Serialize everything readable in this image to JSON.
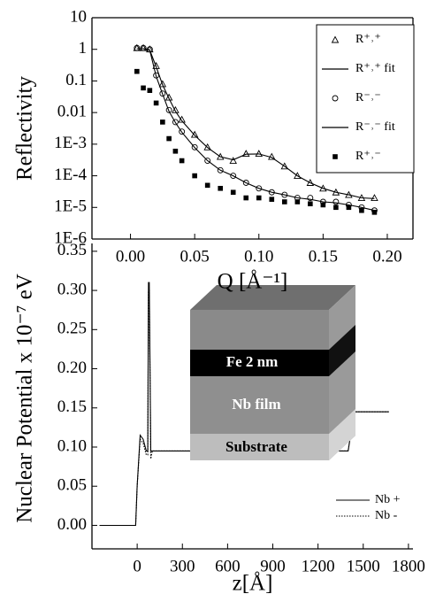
{
  "chart_data": [
    {
      "type": "scatter",
      "xlabel": "Q [Å⁻¹]",
      "ylabel": "Reflectivity",
      "yscale": "log",
      "legend": "upper right",
      "xlim": [
        -0.03,
        0.22
      ],
      "ylim": [
        1e-06,
        10
      ],
      "xticks": [
        {
          "value": 0,
          "label": "0.00"
        },
        0.05,
        {
          "value": 0.1,
          "label": "0.10"
        },
        0.15,
        {
          "value": 0.2,
          "label": "0.20"
        }
      ],
      "yticks": [
        10,
        1,
        0.1,
        0.01,
        {
          "value": 0.001,
          "label": "1E-3"
        },
        {
          "value": 0.0001,
          "label": "1E-4"
        },
        {
          "value": 1e-05,
          "label": "1E-5"
        },
        {
          "value": 1e-06,
          "label": "1E-6"
        }
      ],
      "x": [
        0.005,
        0.01,
        0.015,
        0.02,
        0.025,
        0.03,
        0.035,
        0.04,
        0.05,
        0.06,
        0.07,
        0.08,
        0.09,
        0.1,
        0.11,
        0.12,
        0.13,
        0.14,
        0.15,
        0.16,
        0.17,
        0.18,
        0.19
      ],
      "series": [
        {
          "name": "R⁺˒⁺",
          "color": "#000000",
          "marker": "triangle",
          "values": [
            1.1,
            1.1,
            1.0,
            0.3,
            0.08,
            0.03,
            0.012,
            0.006,
            0.002,
            0.0008,
            0.0004,
            0.0003,
            0.0005,
            0.0005,
            0.0004,
            0.0002,
            0.0001,
            6e-05,
            4e-05,
            3e-05,
            2.5e-05,
            2e-05,
            2e-05
          ]
        },
        {
          "name": "R⁺˒⁺ fit",
          "color": "#000000",
          "marker": "line",
          "values": [
            1.05,
            1.05,
            0.95,
            0.28,
            0.075,
            0.028,
            0.011,
            0.0055,
            0.0019,
            0.00078,
            0.0004,
            0.00032,
            0.00048,
            0.00049,
            0.00038,
            0.0002,
            0.0001,
            6e-05,
            4e-05,
            3e-05,
            2.5e-05,
            2e-05,
            1.9e-05
          ]
        },
        {
          "name": "R⁻˒⁻",
          "color": "#000000",
          "marker": "circle",
          "values": [
            1.1,
            1.1,
            1.0,
            0.15,
            0.04,
            0.012,
            0.005,
            0.0025,
            0.0008,
            0.0003,
            0.00015,
            0.0001,
            6e-05,
            4e-05,
            3e-05,
            2.5e-05,
            2e-05,
            2e-05,
            1.5e-05,
            1.5e-05,
            1.2e-05,
            1e-05,
            8e-06
          ]
        },
        {
          "name": "R⁻˒⁻ fit",
          "color": "#000000",
          "marker": "line",
          "values": [
            1.05,
            1.05,
            0.95,
            0.14,
            0.038,
            0.011,
            0.0048,
            0.0024,
            0.00078,
            0.0003,
            0.00015,
            0.0001,
            6e-05,
            4e-05,
            3e-05,
            2.5e-05,
            2e-05,
            1.8e-05,
            1.5e-05,
            1.4e-05,
            1.2e-05,
            1e-05,
            8e-06
          ]
        },
        {
          "name": "R⁺˒⁻",
          "color": "#000000",
          "marker": "square",
          "values": [
            0.2,
            0.06,
            0.05,
            0.02,
            0.005,
            0.0015,
            0.0006,
            0.0003,
            0.0001,
            5e-05,
            4e-05,
            3e-05,
            2e-05,
            2e-05,
            1.8e-05,
            1.5e-05,
            1.5e-05,
            1.3e-05,
            1.2e-05,
            1e-05,
            1e-05,
            8e-06,
            7e-06
          ]
        }
      ]
    },
    {
      "type": "line",
      "xlabel": "z[Å]",
      "ylabel": "Nuclear Potential x 10⁻⁷ eV",
      "legend": "lower right",
      "xlim": [
        -300,
        1830
      ],
      "ylim": [
        -0.03,
        0.36
      ],
      "xticks": [
        0,
        300,
        600,
        900,
        1200,
        1500,
        1800
      ],
      "yticks": [
        {
          "value": 0,
          "label": "0.00"
        },
        0.05,
        {
          "value": 0.1,
          "label": "0.10"
        },
        0.15,
        {
          "value": 0.2,
          "label": "0.20"
        },
        0.25,
        {
          "value": 0.3,
          "label": "0.30"
        },
        0.35
      ],
      "annotations": [
        "Fe 2 nm",
        "Nb film",
        "Substrate"
      ],
      "x": [
        -250,
        -10,
        0,
        20,
        40,
        60,
        70,
        75,
        80,
        90,
        100,
        200,
        1400,
        1420,
        1440,
        1500,
        1670
      ],
      "series": [
        {
          "name": "Nb +",
          "color": "#000000",
          "line_style": "solid",
          "values": [
            0,
            0,
            0.05,
            0.115,
            0.11,
            0.095,
            0.095,
            0.31,
            0.31,
            0.095,
            0.095,
            0.095,
            0.095,
            0.12,
            0.145,
            0.145,
            0.145
          ]
        },
        {
          "name": "Nb -",
          "color": "#000000",
          "line_style": "dotted",
          "values": [
            0,
            0,
            0.05,
            0.11,
            0.105,
            0.09,
            0.09,
            0.3,
            0.3,
            0.085,
            0.095,
            0.095,
            0.095,
            0.12,
            0.145,
            0.145,
            0.145
          ]
        }
      ]
    }
  ]
}
